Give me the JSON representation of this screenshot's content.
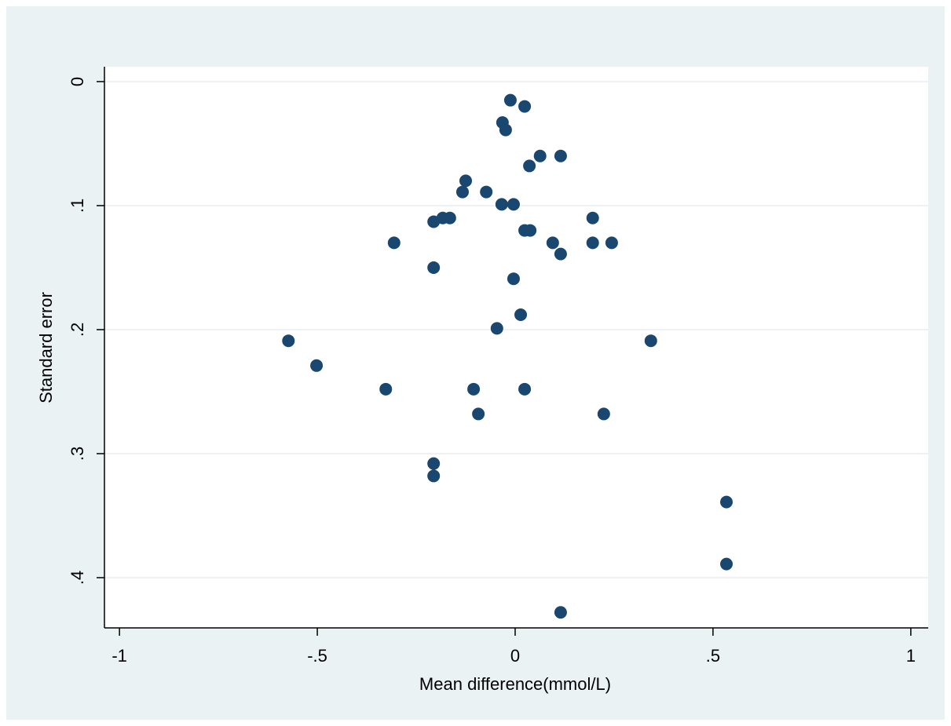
{
  "chart_data": {
    "type": "scatter",
    "x_label": "Mean difference(mmol/L)",
    "y_label": "Standard error",
    "color": "#1a476f",
    "x": [
      -0.012,
      0.024,
      -0.032,
      -0.024,
      0.063,
      0.115,
      0.036,
      -0.125,
      -0.133,
      -0.073,
      -0.034,
      -0.004,
      0.196,
      -0.183,
      -0.165,
      -0.206,
      0.024,
      0.038,
      -0.306,
      0.095,
      0.196,
      0.244,
      0.115,
      -0.206,
      -0.004,
      0.014,
      -0.046,
      -0.573,
      0.343,
      -0.502,
      -0.327,
      -0.105,
      0.024,
      -0.093,
      0.224,
      -0.206,
      -0.206,
      0.534,
      0.534,
      0.115
    ],
    "y": [
      0.015,
      0.02,
      0.033,
      0.039,
      0.06,
      0.06,
      0.068,
      0.08,
      0.089,
      0.089,
      0.099,
      0.099,
      0.11,
      0.11,
      0.11,
      0.113,
      0.12,
      0.12,
      0.13,
      0.13,
      0.13,
      0.13,
      0.139,
      0.15,
      0.159,
      0.188,
      0.199,
      0.209,
      0.209,
      0.229,
      0.248,
      0.248,
      0.248,
      0.268,
      0.268,
      0.308,
      0.318,
      0.339,
      0.389,
      0.428
    ],
    "xlim": [
      -1.038,
      1.044
    ],
    "ylim": [
      -0.012,
      0.4405
    ],
    "y_reversed": true,
    "xticks": [
      -1,
      {
        "value": -0.5,
        "label": "-.5"
      },
      0,
      {
        "value": 0.5,
        "label": ".5"
      },
      1
    ],
    "yticks": [
      0,
      {
        "value": 0.1,
        "label": ".1"
      },
      {
        "value": 0.2,
        "label": ".2"
      },
      {
        "value": 0.3,
        "label": ".3"
      },
      {
        "value": 0.4,
        "label": ".4"
      }
    ],
    "grid": true
  }
}
